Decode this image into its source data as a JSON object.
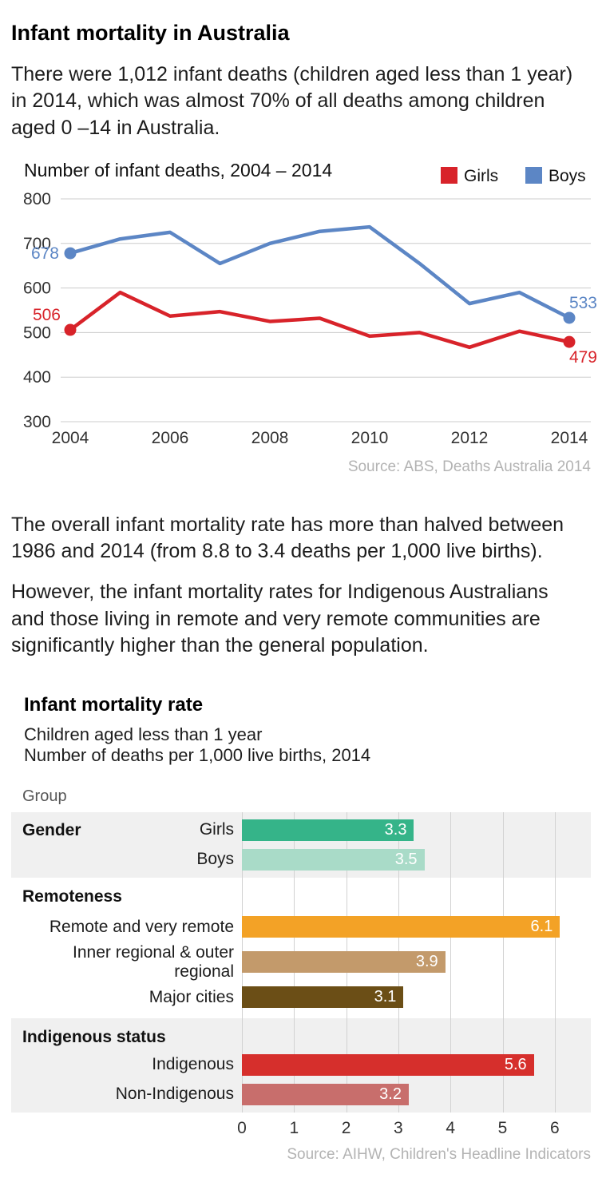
{
  "page": {
    "title": "Infant mortality in Australia",
    "intro": "There were 1,012 infant deaths (children aged less than 1 year) in 2014, which was almost 70% of all deaths among children aged 0 –14 in Australia.",
    "para1": "The overall infant mortality rate has more than halved between 1986 and 2014 (from 8.8 to 3.4 deaths per 1,000 live births).",
    "para2": "However, the infant mortality rates for Indigenous Australians and those living in remote and very remote communities are significantly higher than the general population."
  },
  "chart_data": [
    {
      "type": "line",
      "title": "Number of infant deaths, 2004 – 2014",
      "x": [
        2004,
        2005,
        2006,
        2007,
        2008,
        2009,
        2010,
        2011,
        2012,
        2013,
        2014
      ],
      "series": [
        {
          "name": "Girls",
          "color": "#d8232a",
          "values": [
            506,
            590,
            537,
            547,
            525,
            532,
            492,
            500,
            467,
            503,
            479
          ]
        },
        {
          "name": "Boys",
          "color": "#5c86c5",
          "values": [
            678,
            710,
            725,
            655,
            700,
            727,
            737,
            655,
            565,
            590,
            533
          ]
        }
      ],
      "ylim": [
        300,
        800
      ],
      "yticks": [
        800,
        700,
        600,
        500,
        400,
        300
      ],
      "xticks": [
        2004,
        2006,
        2008,
        2010,
        2012,
        2014
      ],
      "legend": [
        "Girls",
        "Boys"
      ],
      "point_labels": [
        {
          "text": "678",
          "series": "Boys",
          "pos": "first"
        },
        {
          "text": "506",
          "series": "Girls",
          "pos": "first"
        },
        {
          "text": "533",
          "series": "Boys",
          "pos": "last"
        },
        {
          "text": "479",
          "series": "Girls",
          "pos": "last"
        }
      ],
      "source": "Source: ABS, Deaths Australia 2014"
    },
    {
      "type": "bar",
      "title": "Infant mortality rate",
      "subtitle1": "Children aged less than 1 year",
      "subtitle2": "Number of deaths per 1,000 live births, 2014",
      "group_label": "Group",
      "xlim": [
        0,
        6.69
      ],
      "xticks": [
        0,
        1,
        2,
        3,
        4,
        5,
        6
      ],
      "groups": [
        {
          "name": "Gender",
          "shaded": true,
          "name_inline": true,
          "rows": [
            {
              "label": "Girls",
              "value": 3.3,
              "value_label": "3.3",
              "color": "#35b489"
            },
            {
              "label": "Boys",
              "value": 3.5,
              "value_label": "3.5",
              "color": "#a9dbc8"
            }
          ]
        },
        {
          "name": "Remoteness",
          "shaded": false,
          "name_inline": false,
          "rows": [
            {
              "label": "Remote and very remote",
              "value": 6.1,
              "value_label": "6.1",
              "color": "#f3a226"
            },
            {
              "label": "Inner regional & outer regional",
              "value": 3.9,
              "value_label": "3.9",
              "color": "#c39a6b"
            },
            {
              "label": "Major cities",
              "value": 3.1,
              "value_label": "3.1",
              "color": "#6b4e16"
            }
          ]
        },
        {
          "name": "Indigenous status",
          "shaded": true,
          "name_inline": false,
          "rows": [
            {
              "label": "Indigenous",
              "value": 5.6,
              "value_label": "5.6",
              "color": "#d62f2c"
            },
            {
              "label": "Non-Indigenous",
              "value": 3.2,
              "value_label": "3.2",
              "color": "#c86e6c"
            }
          ]
        }
      ],
      "source": "Source: AIHW, Children's Headline Indicators"
    }
  ]
}
